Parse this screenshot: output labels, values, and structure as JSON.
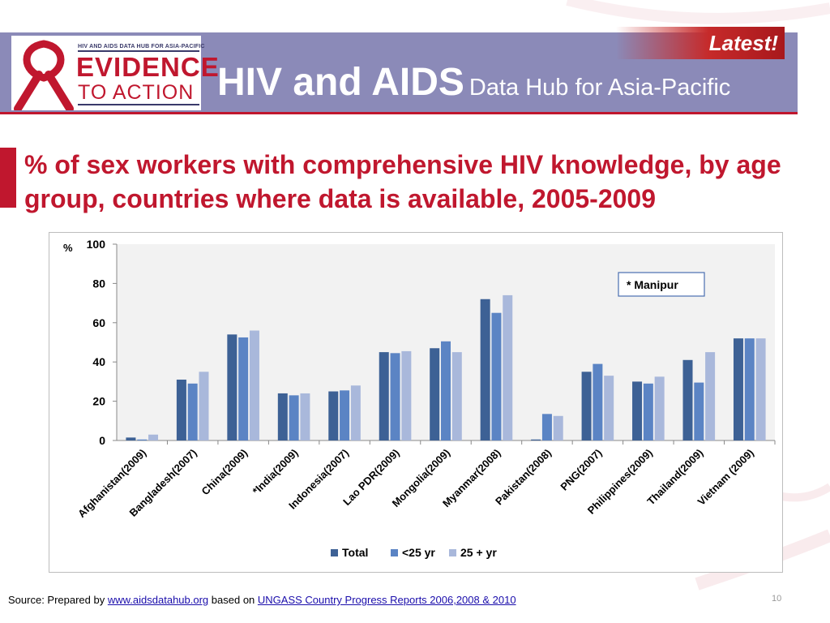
{
  "header": {
    "badge": "Latest!",
    "logo_top": "HIV AND AIDS DATA HUB FOR ASIA-PACIFIC",
    "logo_line1": "EVIDENCE",
    "logo_line2": "TO ACTION",
    "title_main": "HIV and AIDS",
    "title_sub": "Data Hub for Asia-Pacific"
  },
  "slide": {
    "title": "% of sex workers with comprehensive HIV knowledge, by age group,  countries where data is available, 2005-2009"
  },
  "footer": {
    "source_prefix": "Source: Prepared by ",
    "source_link1": "www.aidsdatahub.org",
    "source_mid": " based on ",
    "source_link2": "UNGASS Country Progress Reports  2006,2008 & 2010",
    "page_number": "10"
  },
  "colors": {
    "brand_red": "#c0172e",
    "header_purple": "#8b8ab8",
    "series_total": "#3d6195",
    "series_under25": "#5b84c4",
    "series_over25": "#a9b8db"
  },
  "chart_data": {
    "type": "bar",
    "ylabel": "%",
    "ylim": [
      0,
      100
    ],
    "yticks": [
      0,
      20,
      40,
      60,
      80,
      100
    ],
    "grid": false,
    "legend_position": "bottom",
    "annotation": "* Manipur",
    "categories": [
      "Afghanistan(2009)",
      "Bangladesh(2007)",
      "China(2009)",
      "*India(2009)",
      "Indonesia(2007)",
      "Lao PDR(2009)",
      "Mongolia(2009)",
      "Myanmar(2008)",
      "Pakistan(2008)",
      "PNG(2007)",
      "Philippines(2009)",
      "Thailand(2009)",
      "Vietnam (2009)"
    ],
    "series": [
      {
        "name": "Total",
        "values": [
          1.5,
          31,
          54,
          24,
          25,
          45,
          47,
          72,
          0.5,
          35,
          30,
          41,
          52
        ]
      },
      {
        "name": "<25 yr",
        "values": [
          0.5,
          29,
          52.5,
          23,
          25.5,
          44.5,
          50.5,
          65,
          13.5,
          39,
          29,
          29.5,
          52
        ]
      },
      {
        "name": "25 + yr",
        "values": [
          3,
          35,
          56,
          24,
          28,
          45.5,
          45,
          74,
          12.5,
          33,
          32.5,
          45,
          52
        ]
      }
    ]
  }
}
